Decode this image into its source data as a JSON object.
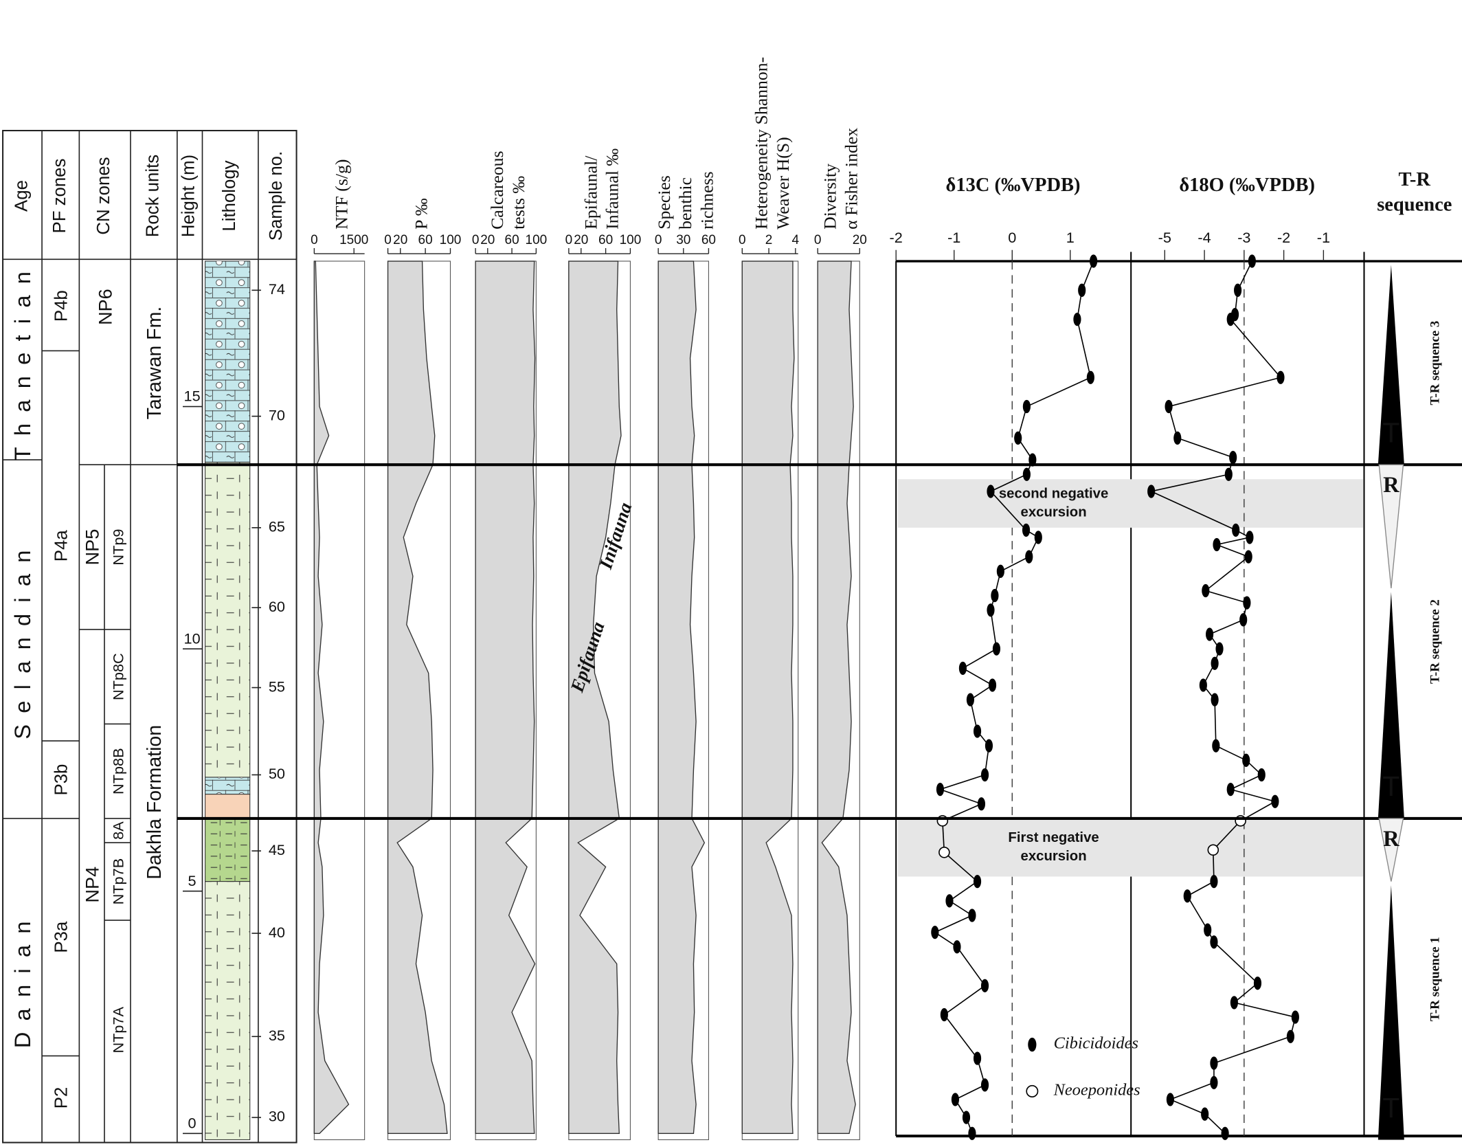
{
  "chart_data": [
    {
      "type": "area",
      "title": [
        "NTF (s/g)"
      ],
      "xlim": [
        0,
        1900
      ],
      "xticks": [
        0,
        1500
      ],
      "color": "#d9d9d9",
      "heights": [
        18,
        17,
        16,
        15,
        14.4,
        13.8,
        13,
        12.3,
        11.5,
        10.5,
        9.5,
        8.5,
        7.5,
        6.5,
        6,
        5.5,
        4.5,
        3.5,
        2.5,
        1.5,
        0.6,
        0
      ],
      "values": [
        50,
        100,
        150,
        200,
        550,
        100,
        150,
        200,
        150,
        300,
        150,
        350,
        200,
        250,
        150,
        300,
        350,
        200,
        150,
        400,
        1300,
        200
      ]
    },
    {
      "type": "area",
      "title": [
        "P ‰"
      ],
      "xlim": [
        0,
        100
      ],
      "xticks": [
        0,
        20,
        60,
        100
      ],
      "color": "#d9d9d9",
      "heights": [
        18,
        17,
        16,
        15,
        14.4,
        13.8,
        13,
        12.3,
        11.5,
        10.5,
        9.5,
        8.5,
        7.5,
        6.5,
        6,
        5.5,
        4.5,
        3.5,
        2.5,
        1.5,
        0.6,
        0
      ],
      "values": [
        55,
        57,
        62,
        70,
        75,
        72,
        45,
        25,
        40,
        30,
        65,
        70,
        72,
        70,
        15,
        40,
        55,
        45,
        60,
        70,
        90,
        95
      ]
    },
    {
      "type": "area",
      "title": [
        "Calcareous",
        "tests ‰"
      ],
      "xlim": [
        0,
        100
      ],
      "xticks": [
        0,
        20,
        60,
        100
      ],
      "color": "#d9d9d9",
      "heights": [
        18,
        17,
        16,
        15,
        14.4,
        13.8,
        13,
        12.3,
        11.5,
        10.5,
        9.5,
        8.5,
        7.5,
        6.5,
        6,
        5.5,
        4.5,
        3.5,
        2.5,
        1.5,
        0.6,
        0
      ],
      "values": [
        97,
        95,
        98,
        96,
        97,
        95,
        97,
        95,
        96,
        94,
        95,
        97,
        95,
        93,
        50,
        85,
        55,
        98,
        60,
        93,
        95,
        97
      ]
    },
    {
      "type": "area",
      "title": [
        "Epifaunal/",
        "Infaunal ‰"
      ],
      "xlim": [
        0,
        100
      ],
      "xticks": [
        0,
        20,
        60,
        100
      ],
      "color": "#d9d9d9",
      "annotations": [
        "Epifauna",
        "Inifauna"
      ],
      "heights": [
        18,
        17,
        16,
        15,
        14.4,
        13.8,
        13,
        12.3,
        11.5,
        10.5,
        9.5,
        8.5,
        7.5,
        6.5,
        6,
        5.5,
        4.5,
        3.5,
        2.5,
        1.5,
        0.6,
        0
      ],
      "values": [
        80,
        78,
        80,
        82,
        85,
        75,
        68,
        60,
        45,
        40,
        42,
        65,
        72,
        82,
        15,
        60,
        18,
        78,
        80,
        78,
        80,
        82
      ]
    },
    {
      "type": "area",
      "title": [
        "Species",
        "benthic",
        "richness"
      ],
      "xlim": [
        0,
        60
      ],
      "xticks": [
        0,
        30,
        60
      ],
      "color": "#d9d9d9",
      "heights": [
        18,
        17,
        16,
        15,
        14.4,
        13.8,
        13,
        12.3,
        11.5,
        10.5,
        9.5,
        8.5,
        7.5,
        6.5,
        6,
        5.5,
        4.5,
        3.5,
        2.5,
        1.5,
        0.6,
        0
      ],
      "values": [
        42,
        45,
        38,
        40,
        43,
        40,
        42,
        43,
        40,
        38,
        42,
        45,
        42,
        40,
        55,
        40,
        45,
        42,
        43,
        40,
        45,
        42
      ]
    },
    {
      "type": "area",
      "title": [
        "Heterogeneity Shannon-",
        "Weaver H(S)"
      ],
      "xlim": [
        0,
        4.2
      ],
      "xticks": [
        0,
        2,
        4
      ],
      "color": "#d9d9d9",
      "heights": [
        18,
        17,
        16,
        15,
        14.4,
        13.8,
        13,
        12.3,
        11.5,
        10.5,
        9.5,
        8.5,
        7.5,
        6.5,
        6,
        5.5,
        4.5,
        3.5,
        2.5,
        1.5,
        0.6,
        0
      ],
      "values": [
        3.8,
        3.8,
        3.9,
        3.7,
        3.8,
        3.6,
        3.7,
        3.7,
        3.8,
        3.8,
        3.7,
        3.8,
        3.8,
        3.7,
        1.8,
        2.5,
        3.7,
        3.8,
        3.7,
        3.8,
        3.7,
        3.8
      ]
    },
    {
      "type": "area",
      "title": [
        "Diversity",
        "α Fisher index"
      ],
      "xlim": [
        0,
        20
      ],
      "xticks": [
        0,
        20
      ],
      "color": "#d9d9d9",
      "heights": [
        18,
        17,
        16,
        15,
        14.4,
        13.8,
        13,
        12.3,
        11.5,
        10.5,
        9.5,
        8.5,
        7.5,
        6.5,
        6,
        5.5,
        4.5,
        3.5,
        2.5,
        1.5,
        0.6,
        0
      ],
      "values": [
        16,
        15,
        16,
        17,
        16,
        15,
        14,
        15,
        16,
        14,
        15,
        16,
        15,
        12,
        2,
        10,
        14,
        15,
        16,
        14,
        18,
        15
      ]
    },
    {
      "type": "profile",
      "title": [
        "δ13C (‰VPDB)"
      ],
      "xlim": [
        -2,
        2.03
      ],
      "xticks": [
        -2,
        -1,
        0,
        1
      ],
      "reference_line": 0,
      "legend": true,
      "bands": [
        {
          "label": [
            "second negative",
            "excursion"
          ],
          "top": 13.5,
          "bottom": 12.5
        },
        {
          "label": [
            "First negative",
            "excursion"
          ],
          "top": 6.5,
          "bottom": 5.3
        }
      ],
      "heights": [
        18.0,
        17.4,
        16.8,
        15.6,
        15.0,
        14.35,
        13.9,
        13.6,
        13.25,
        12.45,
        12.3,
        11.9,
        11.6,
        11.1,
        10.8,
        10.0,
        9.6,
        9.25,
        8.95,
        8.3,
        8.0,
        7.4,
        7.1,
        6.8,
        6.45,
        5.8,
        5.2,
        4.8,
        4.5,
        4.15,
        3.85,
        3.05,
        2.45,
        1.55,
        1.0,
        0.7,
        0.33,
        0.0
      ],
      "series": [
        {
          "name": "Cibicidoides",
          "color": "#000000",
          "values": [
            1.4,
            1.2,
            1.12,
            1.35,
            0.25,
            0.1,
            0.35,
            0.25,
            -0.37,
            0.24,
            0.45,
            0.29,
            -0.2,
            -0.3,
            -0.37,
            -0.27,
            -0.85,
            -0.34,
            -0.72,
            -0.6,
            -0.4,
            -0.47,
            -1.24,
            -0.53,
            null,
            null,
            -0.6,
            -1.08,
            -0.69,
            -1.33,
            -0.95,
            -0.47,
            -1.17,
            -0.6,
            -0.47,
            -0.98,
            -0.79,
            -0.69
          ]
        },
        {
          "name": "Neoeponides",
          "color": "#ffffff",
          "values": [
            null,
            null,
            null,
            null,
            null,
            null,
            null,
            null,
            null,
            null,
            null,
            null,
            null,
            null,
            null,
            null,
            null,
            null,
            null,
            null,
            null,
            null,
            null,
            null,
            -1.2,
            -1.17,
            null,
            null,
            null,
            null,
            null,
            null,
            null,
            null,
            null,
            null,
            null,
            null
          ]
        }
      ]
    },
    {
      "type": "profile",
      "title": [
        "δ18O (‰VPDB)"
      ],
      "xlim": [
        -5.85,
        0
      ],
      "xticks": [
        -5,
        -4,
        -3,
        -2,
        -1
      ],
      "reference_line": -3,
      "legend": false,
      "heights": [
        18.0,
        17.4,
        16.9,
        16.8,
        15.6,
        15.0,
        14.35,
        13.95,
        13.6,
        13.25,
        12.45,
        12.3,
        12.15,
        11.9,
        11.2,
        10.95,
        10.6,
        10.3,
        10.0,
        9.7,
        9.25,
        8.95,
        8.0,
        7.7,
        7.4,
        7.1,
        6.85,
        6.45,
        5.85,
        5.2,
        4.9,
        4.2,
        3.95,
        3.1,
        2.7,
        2.4,
        2.0,
        1.45,
        1.05,
        0.7,
        0.4,
        0.0
      ],
      "series": [
        {
          "color": "#000000",
          "values": [
            -2.8,
            -3.16,
            -3.23,
            -3.34,
            -2.08,
            -4.9,
            -4.68,
            -3.28,
            -3.39,
            -5.34,
            -3.21,
            -2.86,
            -3.69,
            -2.89,
            -3.97,
            -2.93,
            -3.02,
            -3.87,
            -3.62,
            -3.74,
            -4.03,
            -3.74,
            -3.71,
            -2.95,
            -2.56,
            -3.34,
            -2.22,
            null,
            null,
            -3.76,
            -4.43,
            -3.92,
            -3.76,
            -2.66,
            -3.25,
            -1.71,
            -1.83,
            -3.76,
            -3.76,
            -4.86,
            -3.99,
            -3.48
          ]
        },
        {
          "color": "#ffffff",
          "values": [
            null,
            null,
            null,
            null,
            null,
            null,
            null,
            null,
            null,
            null,
            null,
            null,
            null,
            null,
            null,
            null,
            null,
            null,
            null,
            null,
            null,
            null,
            null,
            null,
            null,
            null,
            null,
            -3.09,
            -3.78,
            null,
            null,
            null,
            null,
            null,
            null,
            null,
            null,
            null,
            null,
            null,
            null,
            null
          ]
        }
      ]
    }
  ],
  "strat_column": {
    "headers": [
      "Age",
      "PF zones",
      "CN zones",
      "Rock units",
      "Height (m)",
      "Lithology",
      "Sample no."
    ],
    "height": {
      "ylim": [
        -0.13,
        18
      ],
      "yticks": [
        0,
        5,
        10,
        15
      ]
    },
    "horizons": [
      13.8,
      6.5
    ],
    "age": [
      {
        "label": "Thanetian",
        "top": 18,
        "bottom": 13.9
      },
      {
        "label": "Selandian",
        "top": 13.9,
        "bottom": 6.5
      },
      {
        "label": "Danian",
        "top": 6.5,
        "bottom": -0.13
      }
    ],
    "pf_zones": [
      {
        "label": "P4b",
        "top": 18,
        "bottom": 16.15
      },
      {
        "label": "P4a",
        "top": 16.15,
        "bottom": 8.1
      },
      {
        "label": "P3b",
        "top": 8.1,
        "bottom": 6.5
      },
      {
        "label": "P3a",
        "top": 6.5,
        "bottom": 1.6
      },
      {
        "label": "P2",
        "top": 1.6,
        "bottom": -0.13
      }
    ],
    "cn_zones": [
      {
        "label": "NP6",
        "top": 18,
        "bottom": 13.8
      },
      {
        "label": "NP5",
        "top": 13.8,
        "bottom": 10.4
      },
      {
        "label": "NP4",
        "top": 10.4,
        "bottom": -0.13
      }
    ],
    "cn_subzones": [
      {
        "label": "NTp9",
        "top": 13.8,
        "bottom": 10.4
      },
      {
        "label": "NTp8C",
        "top": 10.4,
        "bottom": 8.45
      },
      {
        "label": "NTp8B",
        "top": 8.45,
        "bottom": 6.5
      },
      {
        "label": "8A",
        "top": 6.5,
        "bottom": 6.0
      },
      {
        "label": "NTp7B",
        "top": 6.0,
        "bottom": 4.4
      },
      {
        "label": "NTp7A",
        "top": 4.4,
        "bottom": -0.13
      }
    ],
    "rock_units": [
      {
        "label": "Tarawan Fm.",
        "top": 18,
        "bottom": 13.8
      },
      {
        "label": "Dakhla Formation",
        "top": 13.8,
        "bottom": -0.13
      }
    ],
    "lithology": [
      {
        "top": 18,
        "bottom": 13.85,
        "color": "#c5e8ec",
        "pattern": "chalk"
      },
      {
        "top": 13.85,
        "bottom": 7.35,
        "color": "#e9f3d9",
        "pattern": "marl"
      },
      {
        "top": 7.35,
        "bottom": 7.0,
        "color": "#c5e8ec",
        "pattern": "chalk"
      },
      {
        "top": 7.0,
        "bottom": 6.5,
        "color": "#f8d3b8",
        "pattern": "plain"
      },
      {
        "top": 6.5,
        "bottom": 5.2,
        "color": "#b5d78e",
        "pattern": "shale"
      },
      {
        "top": 5.2,
        "bottom": -0.13,
        "color": "#e9f3d9",
        "pattern": "marl"
      }
    ],
    "samples": [
      {
        "value": 17.4,
        "label": "74"
      },
      {
        "value": 14.8,
        "label": "70"
      },
      {
        "value": 12.5,
        "label": "65"
      },
      {
        "value": 10.85,
        "label": "60"
      },
      {
        "value": 9.2,
        "label": "55"
      },
      {
        "value": 7.4,
        "label": "50"
      },
      {
        "value": 5.83,
        "label": "45"
      },
      {
        "value": 4.13,
        "label": "40"
      },
      {
        "value": 2.0,
        "label": "35"
      },
      {
        "value": 0.33,
        "label": "30"
      }
    ]
  },
  "tr_sequence": {
    "title": [
      "T-R",
      "sequence"
    ],
    "t_label": "T",
    "r_label": "R",
    "sequences": [
      {
        "label": "T-R sequence 3",
        "transgressive": {
          "top": 18,
          "bottom": 13.8
        }
      },
      {
        "label": "T-R sequence 2",
        "regressive": {
          "top": 13.8,
          "bottom": 11.25
        },
        "transgressive": {
          "top": 11.25,
          "bottom": 6.5
        }
      },
      {
        "label": "T-R sequence 1",
        "regressive": {
          "top": 6.5,
          "bottom": 5.2
        },
        "transgressive": {
          "top": 5.2,
          "bottom": -0.13
        }
      }
    ]
  }
}
